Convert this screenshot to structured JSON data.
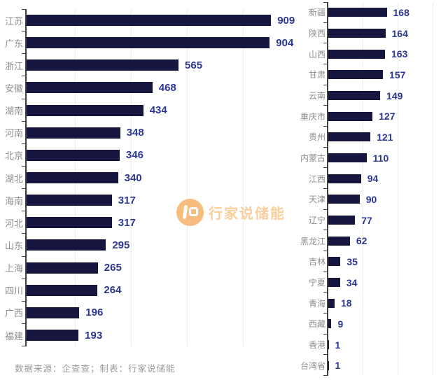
{
  "watermark": {
    "brand": "行家说储能"
  },
  "footer": {
    "text": "数据来源：企查查；制表：行家说储能"
  },
  "colors": {
    "bar": "#16163e",
    "value_label": "#2c3792",
    "category_label": "#8e8e8e",
    "axis": "#3f3f3f",
    "gridline": "#ededed",
    "watermark_orange": "#f6b269",
    "background": "#ffffff"
  },
  "chart_data": [
    {
      "type": "bar",
      "orientation": "horizontal",
      "title": "",
      "xlabel": "",
      "ylabel": "",
      "grid": true,
      "xlim": [
        0,
        1010
      ],
      "categories": [
        "江苏",
        "广东",
        "浙江",
        "安徽",
        "湖南",
        "河南",
        "北京",
        "湖北",
        "海南",
        "河北",
        "山东",
        "上海",
        "四川",
        "广西",
        "福建"
      ],
      "values": [
        909,
        904,
        565,
        468,
        434,
        348,
        346,
        340,
        317,
        317,
        295,
        265,
        264,
        196,
        193
      ]
    },
    {
      "type": "bar",
      "orientation": "horizontal",
      "title": "",
      "xlabel": "",
      "ylabel": "",
      "grid": true,
      "xlim": [
        0,
        340
      ],
      "categories": [
        "新疆",
        "陕西",
        "山西",
        "甘肃",
        "云南",
        "重庆市",
        "贵州",
        "内蒙古",
        "江西",
        "天津",
        "辽宁",
        "黑龙江",
        "吉林",
        "宁夏",
        "青海",
        "西藏",
        "香港",
        "台湾省"
      ],
      "values": [
        168,
        164,
        163,
        157,
        149,
        127,
        121,
        110,
        94,
        90,
        77,
        62,
        35,
        34,
        18,
        9,
        1,
        1
      ]
    }
  ]
}
